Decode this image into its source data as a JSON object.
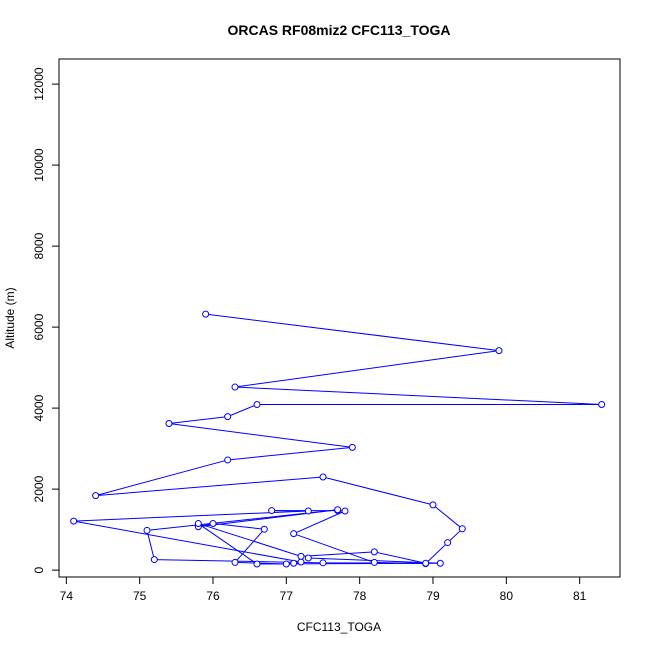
{
  "chart_data": {
    "type": "line",
    "title": "ORCAS RF08miz2 CFC113_TOGA",
    "xlabel": "CFC113_TOGA",
    "ylabel": "Altitude (m)",
    "xlim": [
      73.9,
      81.55
    ],
    "ylim": [
      -170,
      12620
    ],
    "x_ticks": [
      74,
      75,
      76,
      77,
      78,
      79,
      80,
      81
    ],
    "y_ticks": [
      0,
      2000,
      4000,
      6000,
      8000,
      10000,
      12000
    ],
    "grid": false,
    "legend": "none",
    "color": "#0000ff",
    "series": [
      {
        "x": [
          75.9,
          79.9,
          76.3,
          81.3,
          76.6,
          76.2,
          75.4,
          77.9,
          76.2,
          74.4,
          77.5,
          79.0,
          79.4,
          79.2,
          78.9,
          78.2,
          77.1,
          77.8,
          77.7,
          76.8,
          77.3,
          74.1,
          77.2,
          77.1,
          77.0,
          76.3,
          76.7,
          76.0,
          75.8,
          77.7,
          75.1,
          75.2,
          77.5,
          78.9,
          78.2,
          77.2,
          75.8,
          76.6,
          79.1,
          77.3
        ],
        "y": [
          6320,
          5420,
          4520,
          4090,
          4090,
          3790,
          3620,
          3030,
          2720,
          1840,
          2300,
          1610,
          1020,
          680,
          160,
          190,
          900,
          1460,
          1470,
          1470,
          1460,
          1210,
          200,
          170,
          150,
          190,
          1010,
          1150,
          1070,
          1490,
          980,
          260,
          180,
          170,
          450,
          340,
          1150,
          150,
          170,
          300
        ]
      }
    ]
  }
}
